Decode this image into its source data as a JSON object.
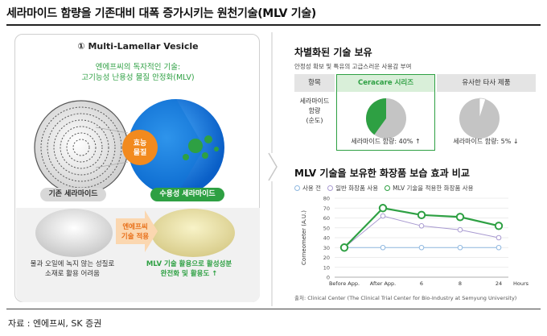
{
  "header": {
    "title": "세라마이드 함량을 기존대비 대폭 증가시키는 원천기술(MLV 기술)"
  },
  "left_panel": {
    "heading": "① Multi-Lamellar Vesicle",
    "subtitle_line1": "엔에프씨의 독자적인 기술:",
    "subtitle_line2": "고기능성 난용성 물질 안정화(MLV)",
    "center_label_line1": "효능",
    "center_label_line2": "물질",
    "legacy_label": "기존 세라마이드",
    "soluble_label": "수용성 세라마이드",
    "arrow_label_line1": "엔에프씨",
    "arrow_label_line2": "기술 적용",
    "legacy_caption_line1": "물과 오일에 녹지 않는 성질로",
    "legacy_caption_line2": "소재로 활용 어려움",
    "soluble_caption_line1": "MLV 기술 활용으로 활성성분",
    "soluble_caption_line2": "완전화 및 활용도 ↑"
  },
  "right_panel": {
    "table_title": "차별화된 기술 보유",
    "table_note": "안정성 확보 및 특유의 고급스러운 사용감 부여",
    "col_item": "항목",
    "col_ceracare": "Ceracare 시리즈",
    "col_competitor": "유사한 타사 제품",
    "row_label_line1": "세라마이드",
    "row_label_line2": "함량",
    "row_label_line3": "(순도)",
    "ceracare_caption": "세라마이드 함량: 40% ↑",
    "competitor_caption": "세라마이드 함량: 5% ↓",
    "ceracare_share": 0.4,
    "competitor_share": 0.05,
    "chart_title": "MLV 기술을 보유한 화장품 보습 효과 비교",
    "chart_source": "출처: Clinical Center (The Clinical Trial Center for Bio-Industry at Semyung University)"
  },
  "colors": {
    "green": "#2ea043",
    "grey": "#bdbdbd",
    "purple": "#a99bd1",
    "blue": "#8fb8e0"
  },
  "footer": {
    "source": "자료 : 엔에프씨, SK 증권"
  },
  "chart_data": {
    "type": "line",
    "title": "MLV 기술을 보유한 화장품 보습 효과 비교",
    "xlabel": "Hours",
    "ylabel": "Corneometer (A.U.)",
    "categories": [
      "Before App.",
      "After App.",
      "6",
      "8",
      "24"
    ],
    "ylim": [
      0,
      80
    ],
    "yticks": [
      "0",
      "10",
      "20",
      "30",
      "40",
      "50",
      "60",
      "70",
      "80"
    ],
    "grid": true,
    "legend_position": "top",
    "series": [
      {
        "name": "사용 전",
        "values": [
          30,
          30,
          30,
          30,
          30
        ],
        "color": "#8fb8e0"
      },
      {
        "name": "일반 화장품 사용",
        "values": [
          30,
          62,
          52,
          48,
          40
        ],
        "color": "#a99bd1"
      },
      {
        "name": "MLV 기술을 적용한 화장품 사용",
        "values": [
          30,
          70,
          63,
          61,
          52
        ],
        "color": "#2ea043"
      }
    ]
  }
}
